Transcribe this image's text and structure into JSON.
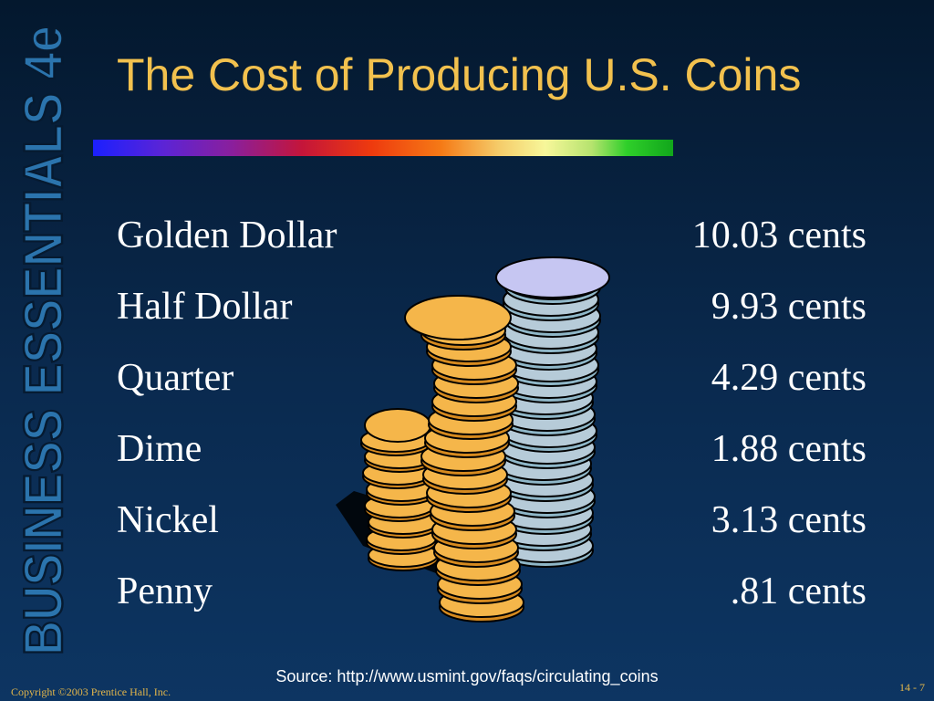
{
  "branding": {
    "vertical_title": "BUSINESS ESSENTIALS 4e"
  },
  "slide": {
    "title": "The Cost of Producing U.S. Coins"
  },
  "coins": [
    {
      "name": "Golden Dollar",
      "cost": "10.03 cents"
    },
    {
      "name": "Half Dollar",
      "cost": "9.93 cents"
    },
    {
      "name": "Quarter",
      "cost": "4.29 cents"
    },
    {
      "name": "Dime",
      "cost": "1.88 cents"
    },
    {
      "name": "Nickel",
      "cost": "3.13 cents"
    },
    {
      "name": "Penny",
      "cost": ".81 cents"
    }
  ],
  "footer": {
    "source": "Source: http://www.usmint.gov/faqs/circulating_coins",
    "copyright": "Copyright ©2003 Prentice Hall, Inc.",
    "slide_number": "14 - 7"
  },
  "colors": {
    "background": "#0a2a4f",
    "title": "#f2c14e",
    "brand_fill": "#2b74ad",
    "gold_coin": "#f5b64a",
    "silver_coin": "#b6cbd8"
  }
}
